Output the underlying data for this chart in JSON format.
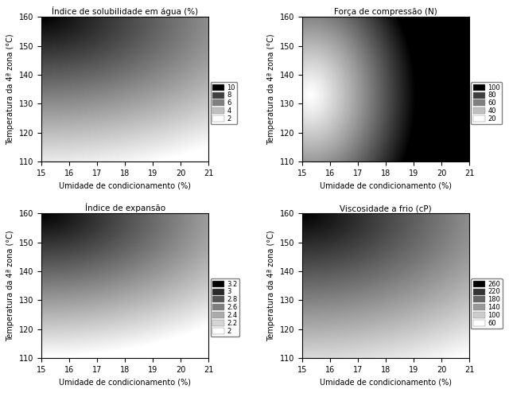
{
  "titles": [
    "Índice de solubilidade em água (%)",
    "Força de compressão (N)",
    "Índice de expansão",
    "Viscosidade a frio (cP)"
  ],
  "xlabel": "Umidade de condicionamento (%)",
  "ylabel": "Temperatura da 4ª zona (°C)",
  "xlim": [
    15,
    21
  ],
  "ylim": [
    110,
    160
  ],
  "xticks": [
    15,
    16,
    17,
    18,
    19,
    20,
    21
  ],
  "yticks": [
    110,
    120,
    130,
    140,
    150,
    160
  ],
  "legend_labels_1": [
    "10",
    "8",
    "6",
    "4",
    "2"
  ],
  "legend_labels_2": [
    "100",
    "80",
    "60",
    "40",
    "20"
  ],
  "legend_labels_3": [
    "3.2",
    "3",
    "2.8",
    "2.6",
    "2.4",
    "2.2",
    "2"
  ],
  "legend_labels_4": [
    "260",
    "220",
    "180",
    "140",
    "100",
    "60"
  ]
}
